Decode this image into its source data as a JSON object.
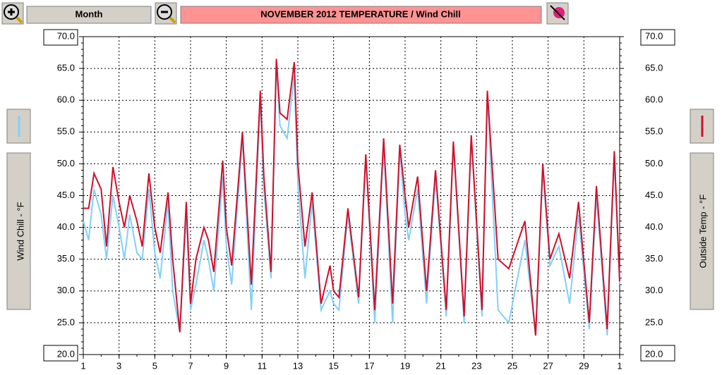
{
  "toolbar": {
    "range": "Month"
  },
  "chart_data": {
    "type": "line",
    "title": "NOVEMBER  2012   TEMPERATURE / Wind Chill",
    "ylabel": "Wind Chill - °F",
    "y2label": "Outside Temp - °F",
    "xlim": [
      1,
      31
    ],
    "xticks": [
      1,
      3,
      5,
      7,
      9,
      11,
      13,
      15,
      17,
      19,
      21,
      23,
      25,
      27,
      29,
      {
        "value": 31,
        "label": "1"
      }
    ],
    "ylim": [
      20,
      70
    ],
    "yticks": [
      {
        "value": 20,
        "label": "20.0"
      },
      {
        "value": 25,
        "label": "25.0"
      },
      {
        "value": 30,
        "label": "30.0"
      },
      {
        "value": 35,
        "label": "35.0"
      },
      {
        "value": 40,
        "label": "40.0"
      },
      {
        "value": 45,
        "label": "45.0"
      },
      {
        "value": 50,
        "label": "50.0"
      },
      {
        "value": 55,
        "label": "55.0"
      },
      {
        "value": 60,
        "label": "60.0"
      },
      {
        "value": 65,
        "label": "65.0"
      },
      {
        "value": 70,
        "label": "70.0"
      }
    ],
    "y2lim": [
      20,
      70
    ],
    "y2ticks": [
      {
        "value": 20,
        "label": "20.0"
      },
      {
        "value": 25,
        "label": "25.0"
      },
      {
        "value": 30,
        "label": "30.0"
      },
      {
        "value": 35,
        "label": "35.0"
      },
      {
        "value": 40,
        "label": "40.0"
      },
      {
        "value": 45,
        "label": "45.0"
      },
      {
        "value": 50,
        "label": "50.0"
      },
      {
        "value": 55,
        "label": "55.0"
      },
      {
        "value": 60,
        "label": "60.0"
      },
      {
        "value": 65,
        "label": "65.0"
      },
      {
        "value": 70,
        "label": "70.0"
      }
    ],
    "grid": true,
    "x": [
      1.0,
      1.3,
      1.6,
      2.0,
      2.3,
      2.66,
      3.0,
      3.3,
      3.6,
      4.0,
      4.3,
      4.67,
      5.0,
      5.3,
      5.74,
      6.0,
      6.4,
      6.76,
      7.0,
      7.3,
      7.75,
      8.0,
      8.3,
      8.8,
      9.0,
      9.3,
      9.9,
      10.4,
      10.9,
      11.1,
      11.5,
      11.8,
      12.0,
      12.4,
      12.8,
      13.0,
      13.4,
      13.8,
      14.3,
      14.8,
      15.0,
      15.3,
      15.8,
      16.4,
      16.8,
      17.3,
      17.8,
      18.3,
      18.7,
      19.0,
      19.2,
      19.7,
      20.2,
      20.7,
      21.3,
      21.7,
      22.3,
      22.7,
      23.3,
      23.6,
      24.2,
      24.8,
      25.7,
      26.3,
      26.7,
      27.1,
      27.6,
      28.2,
      28.7,
      29.3,
      29.7,
      30.3,
      30.7,
      31.0
    ],
    "series": [
      {
        "color": "#80d0f8",
        "values": [
          41,
          38,
          46,
          42,
          35,
          45,
          40,
          35,
          42,
          36,
          35,
          46,
          36,
          32,
          44,
          30,
          23.5,
          42,
          27,
          31,
          38,
          35,
          30,
          48,
          37,
          31,
          54,
          27,
          60,
          46,
          32,
          66,
          56,
          54,
          64,
          47,
          32,
          44,
          27,
          30,
          28,
          27,
          42,
          28,
          51,
          25,
          53,
          25,
          52,
          42,
          38,
          46,
          28,
          48,
          26,
          53,
          25,
          54,
          26,
          61,
          27,
          25,
          38,
          23,
          49,
          34,
          37,
          28,
          42,
          24,
          45,
          23,
          51,
          31
        ]
      },
      {
        "color": "#d0102a",
        "axis": "y2",
        "values": [
          43,
          43,
          48.5,
          46,
          37,
          49.5,
          44,
          40,
          45,
          41,
          37,
          48.5,
          40,
          36,
          45.5,
          35,
          23.5,
          44,
          28,
          35,
          40,
          38,
          33,
          50.5,
          40,
          34,
          55,
          31,
          61.5,
          48,
          33,
          66.5,
          58,
          57,
          66,
          50,
          37,
          45.5,
          28,
          34,
          30,
          29,
          43,
          29,
          51.5,
          27,
          54,
          28,
          53,
          45,
          40,
          48,
          30,
          49,
          27,
          53.5,
          26,
          54.5,
          27,
          61.5,
          35,
          33.5,
          41,
          23,
          50,
          35,
          39,
          32,
          44,
          25,
          46.5,
          24,
          52,
          31.5
        ]
      }
    ]
  }
}
